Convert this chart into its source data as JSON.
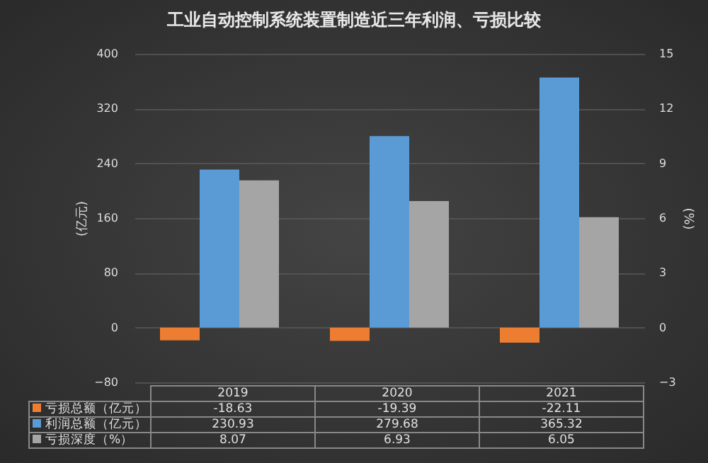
{
  "chart_data": {
    "type": "bar",
    "title": "工业自动控制系统装置制造近三年利润、亏损比较",
    "categories": [
      "2019",
      "2020",
      "2021"
    ],
    "series": [
      {
        "name": "亏损总额（亿元）",
        "color": "#ed7d31",
        "values": [
          -18.63,
          -19.39,
          -22.11
        ]
      },
      {
        "name": "利润总额（亿元）",
        "color": "#5b9bd5",
        "values": [
          230.93,
          279.68,
          365.32
        ]
      },
      {
        "name": "亏损深度（%）",
        "color": "#a5a5a5",
        "values": [
          8.07,
          6.93,
          6.05
        ],
        "axis": "y2"
      }
    ],
    "ylabel": "(亿元)",
    "y2label": "(%)",
    "ylim": [
      -80,
      400
    ],
    "yticks": [
      -80,
      0,
      80,
      160,
      240,
      320,
      400
    ],
    "y2lim": [
      -3,
      15
    ],
    "y2ticks": [
      -3,
      0,
      3,
      6,
      9,
      12,
      15
    ],
    "grid": "y",
    "legend": "bottom",
    "data_labels": true
  }
}
